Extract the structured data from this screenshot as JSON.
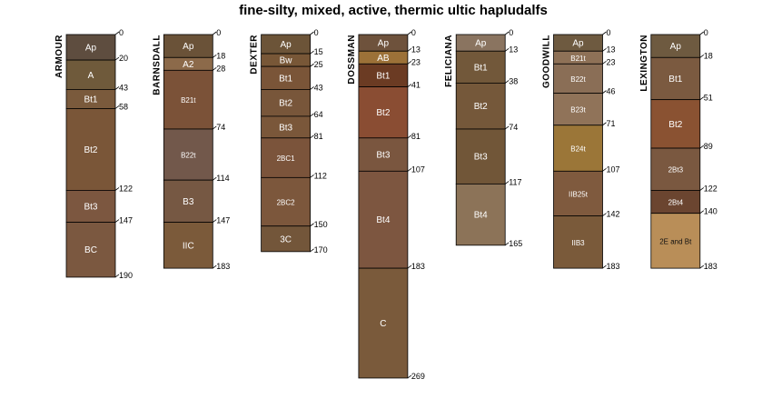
{
  "chart_data": {
    "type": "soil-profile",
    "title": "fine-silty, mixed, active, thermic ultic hapludalfs",
    "depth_unit": "cm",
    "ylim": [
      0,
      269
    ],
    "profiles": [
      {
        "name": "ARMOUR",
        "horizons": [
          {
            "name": "Ap",
            "top": 0,
            "bottom": 20,
            "color": "#5e4d3f"
          },
          {
            "name": "A",
            "top": 20,
            "bottom": 43,
            "color": "#6f5a3b"
          },
          {
            "name": "Bt1",
            "top": 43,
            "bottom": 58,
            "color": "#7a5a3c"
          },
          {
            "name": "Bt2",
            "top": 58,
            "bottom": 122,
            "color": "#7a5638"
          },
          {
            "name": "Bt3",
            "top": 122,
            "bottom": 147,
            "color": "#7c5740"
          },
          {
            "name": "BC",
            "top": 147,
            "bottom": 190,
            "color": "#7b5840"
          }
        ]
      },
      {
        "name": "BARNSDALL",
        "horizons": [
          {
            "name": "Ap",
            "top": 0,
            "bottom": 18,
            "color": "#6a5238"
          },
          {
            "name": "A2",
            "top": 18,
            "bottom": 28,
            "color": "#8c6a4a"
          },
          {
            "name": "B21t",
            "top": 28,
            "bottom": 74,
            "color": "#7b5238"
          },
          {
            "name": "B22t",
            "top": 74,
            "bottom": 114,
            "color": "#72584b"
          },
          {
            "name": "B3",
            "top": 114,
            "bottom": 147,
            "color": "#765843"
          },
          {
            "name": "IIC",
            "top": 147,
            "bottom": 183,
            "color": "#7b5a3a"
          }
        ]
      },
      {
        "name": "DEXTER",
        "horizons": [
          {
            "name": "Ap",
            "top": 0,
            "bottom": 15,
            "color": "#6c5438"
          },
          {
            "name": "Bw",
            "top": 15,
            "bottom": 25,
            "color": "#785737"
          },
          {
            "name": "Bt1",
            "top": 25,
            "bottom": 43,
            "color": "#7a5538"
          },
          {
            "name": "Bt2",
            "top": 43,
            "bottom": 64,
            "color": "#78563a"
          },
          {
            "name": "Bt3",
            "top": 64,
            "bottom": 81,
            "color": "#7a573a"
          },
          {
            "name": "2BC1",
            "top": 81,
            "bottom": 112,
            "color": "#7b543b"
          },
          {
            "name": "2BC2",
            "top": 112,
            "bottom": 150,
            "color": "#7c573c"
          },
          {
            "name": "3C",
            "top": 150,
            "bottom": 170,
            "color": "#73563a"
          }
        ]
      },
      {
        "name": "DOSSMAN",
        "horizons": [
          {
            "name": "Ap",
            "top": 0,
            "bottom": 13,
            "color": "#6e523c"
          },
          {
            "name": "AB",
            "top": 13,
            "bottom": 23,
            "color": "#9c7138"
          },
          {
            "name": "Bt1",
            "top": 23,
            "bottom": 41,
            "color": "#6b3b23"
          },
          {
            "name": "Bt2",
            "top": 41,
            "bottom": 81,
            "color": "#8a4d33"
          },
          {
            "name": "Bt3",
            "top": 81,
            "bottom": 107,
            "color": "#7a563f"
          },
          {
            "name": "Bt4",
            "top": 107,
            "bottom": 183,
            "color": "#7d5640"
          },
          {
            "name": "C",
            "top": 183,
            "bottom": 269,
            "color": "#7a5a3b"
          }
        ]
      },
      {
        "name": "FELICIANA",
        "horizons": [
          {
            "name": "Ap",
            "top": 0,
            "bottom": 13,
            "color": "#8a7460"
          },
          {
            "name": "Bt1",
            "top": 13,
            "bottom": 38,
            "color": "#72583a"
          },
          {
            "name": "Bt2",
            "top": 38,
            "bottom": 74,
            "color": "#75583a"
          },
          {
            "name": "Bt3",
            "top": 74,
            "bottom": 117,
            "color": "#715638"
          },
          {
            "name": "Bt4",
            "top": 117,
            "bottom": 165,
            "color": "#8c7358"
          }
        ]
      },
      {
        "name": "GOODWILL",
        "horizons": [
          {
            "name": "Ap",
            "top": 0,
            "bottom": 13,
            "color": "#6e5a40"
          },
          {
            "name": "B21t",
            "top": 13,
            "bottom": 23,
            "color": "#8e7157"
          },
          {
            "name": "B22t",
            "top": 23,
            "bottom": 46,
            "color": "#8a6e56"
          },
          {
            "name": "B23t",
            "top": 46,
            "bottom": 71,
            "color": "#907359"
          },
          {
            "name": "B24t",
            "top": 71,
            "bottom": 107,
            "color": "#9b7638"
          },
          {
            "name": "IIB25t",
            "top": 107,
            "bottom": 142,
            "color": "#7f5a3e"
          },
          {
            "name": "IIB3",
            "top": 142,
            "bottom": 183,
            "color": "#7a5a3a"
          }
        ]
      },
      {
        "name": "LEXINGTON",
        "horizons": [
          {
            "name": "Ap",
            "top": 0,
            "bottom": 18,
            "color": "#6e5a40"
          },
          {
            "name": "Bt1",
            "top": 18,
            "bottom": 51,
            "color": "#7b5a40"
          },
          {
            "name": "Bt2",
            "top": 51,
            "bottom": 89,
            "color": "#8a5232"
          },
          {
            "name": "2Bt3",
            "top": 89,
            "bottom": 122,
            "color": "#7a5840"
          },
          {
            "name": "2Bt4",
            "top": 122,
            "bottom": 140,
            "color": "#6b4530"
          },
          {
            "name": "2E and Bt",
            "top": 140,
            "bottom": 183,
            "color": "#b98e58"
          }
        ]
      }
    ]
  }
}
